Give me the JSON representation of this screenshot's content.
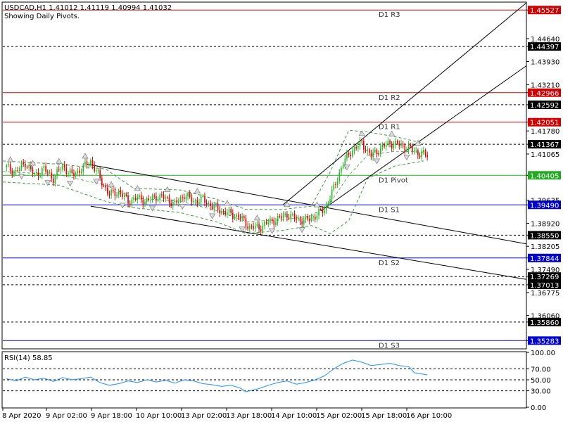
{
  "header": {
    "symbol_line": "USDCAD,H1  1.41012 1.41119 1.40994 1.41032",
    "subtitle": "Showing Daily Pivots."
  },
  "chart_data": [
    {
      "type": "candlestick",
      "symbol": "USDCAD",
      "timeframe": "H1",
      "ylim": [
        1.3505,
        1.4575
      ],
      "price_ticks": [
        1.45527,
        1.4464,
        1.44397,
        1.4393,
        1.4321,
        1.42966,
        1.42592,
        1.42051,
        1.4178,
        1.41367,
        1.41065,
        1.40405,
        1.39635,
        1.3949,
        1.3892,
        1.3855,
        1.38205,
        1.37844,
        1.3749,
        1.37269,
        1.37013,
        1.36775,
        1.3606,
        1.3586,
        1.35283
      ],
      "time_labels": [
        "8 Apr 2020",
        "9 Apr 02:00",
        "9 Apr 18:00",
        "10 Apr 10:00",
        "13 Apr 02:00",
        "13 Apr 18:00",
        "14 Apr 10:00",
        "15 Apr 02:00",
        "15 Apr 18:00",
        "16 Apr 10:00"
      ],
      "pivots": [
        {
          "label": "D1 R3",
          "value": 1.45527,
          "color": "#d00000"
        },
        {
          "label": "D1 R2",
          "value": 1.42966,
          "color": "#d00000"
        },
        {
          "label": "D1 R1",
          "value": 1.42051,
          "color": "#d00000"
        },
        {
          "label": "D1 Pivot",
          "value": 1.40405,
          "color": "#22aa22"
        },
        {
          "label": "D1 S1",
          "value": 1.3949,
          "color": "#0000cc"
        },
        {
          "label": "D1 S2",
          "value": 1.37844,
          "color": "#0000cc"
        },
        {
          "label": "D1 S3",
          "value": 1.35283,
          "color": "#0000cc"
        }
      ],
      "dashed_levels": [
        1.44397,
        1.42592,
        1.41367,
        1.3855,
        1.37269,
        1.37013,
        1.3586
      ],
      "close_path": [
        [
          0,
          1.4065
        ],
        [
          5,
          1.405
        ],
        [
          10,
          1.408
        ],
        [
          15,
          1.404
        ],
        [
          20,
          1.406
        ],
        [
          25,
          1.403
        ],
        [
          30,
          1.407
        ],
        [
          35,
          1.404
        ],
        [
          40,
          1.406
        ],
        [
          45,
          1.4085
        ],
        [
          50,
          1.403
        ],
        [
          55,
          1.398
        ],
        [
          60,
          1.399
        ],
        [
          65,
          1.396
        ],
        [
          70,
          1.397
        ],
        [
          75,
          1.396
        ],
        [
          80,
          1.3975
        ],
        [
          85,
          1.397
        ],
        [
          90,
          1.395
        ],
        [
          95,
          1.398
        ],
        [
          100,
          1.396
        ],
        [
          105,
          1.3965
        ],
        [
          110,
          1.3945
        ],
        [
          115,
          1.393
        ],
        [
          120,
          1.392
        ],
        [
          125,
          1.391
        ],
        [
          130,
          1.388
        ],
        [
          135,
          1.3878
        ],
        [
          140,
          1.3895
        ],
        [
          145,
          1.3905
        ],
        [
          150,
          1.392
        ],
        [
          155,
          1.3905
        ],
        [
          160,
          1.39
        ],
        [
          165,
          1.3915
        ],
        [
          170,
          1.3935
        ],
        [
          175,
          1.4
        ],
        [
          180,
          1.408
        ],
        [
          185,
          1.412
        ],
        [
          190,
          1.414
        ],
        [
          195,
          1.41
        ],
        [
          200,
          1.4125
        ],
        [
          205,
          1.414
        ],
        [
          210,
          1.4135
        ],
        [
          215,
          1.4125
        ],
        [
          220,
          1.411
        ],
        [
          225,
          1.4103
        ]
      ],
      "bb_upper": [
        [
          0,
          1.4085
        ],
        [
          30,
          1.4075
        ],
        [
          55,
          1.406
        ],
        [
          70,
          1.4
        ],
        [
          95,
          1.3995
        ],
        [
          115,
          1.3965
        ],
        [
          130,
          1.3935
        ],
        [
          150,
          1.3935
        ],
        [
          165,
          1.3945
        ],
        [
          175,
          1.405
        ],
        [
          185,
          1.418
        ],
        [
          195,
          1.4175
        ],
        [
          210,
          1.416
        ],
        [
          225,
          1.414
        ]
      ],
      "bb_lower": [
        [
          0,
          1.402
        ],
        [
          30,
          1.401
        ],
        [
          55,
          1.396
        ],
        [
          70,
          1.394
        ],
        [
          95,
          1.3925
        ],
        [
          115,
          1.3895
        ],
        [
          130,
          1.386
        ],
        [
          150,
          1.387
        ],
        [
          165,
          1.3885
        ],
        [
          175,
          1.386
        ],
        [
          185,
          1.39
        ],
        [
          195,
          1.403
        ],
        [
          210,
          1.407
        ],
        [
          225,
          1.4085
        ]
      ],
      "trendlines": [
        {
          "start": [
            45,
            1.4075
          ],
          "end": [
            280,
            1.3828
          ]
        },
        {
          "start": [
            47,
            1.3945
          ],
          "end": [
            280,
            1.3718
          ]
        },
        {
          "start": [
            150,
            1.395
          ],
          "end": [
            280,
            1.4575
          ]
        },
        {
          "start": [
            170,
            1.393
          ],
          "end": [
            280,
            1.438
          ]
        }
      ]
    },
    {
      "type": "line",
      "name": "RSI(14)",
      "title": "RSI(14) 58.85",
      "last_value": 58.85,
      "ylim": [
        0,
        100
      ],
      "ticks": [
        100.0,
        70.0,
        50.0,
        30.0,
        0.0
      ],
      "levels": [
        70,
        50,
        30
      ],
      "color": "#1e90ff",
      "values": [
        [
          0,
          52
        ],
        [
          5,
          48
        ],
        [
          10,
          55
        ],
        [
          15,
          50
        ],
        [
          20,
          53
        ],
        [
          25,
          47
        ],
        [
          30,
          54
        ],
        [
          35,
          50
        ],
        [
          40,
          52
        ],
        [
          45,
          55
        ],
        [
          50,
          45
        ],
        [
          55,
          40
        ],
        [
          60,
          43
        ],
        [
          65,
          48
        ],
        [
          70,
          45
        ],
        [
          75,
          50
        ],
        [
          80,
          46
        ],
        [
          85,
          49
        ],
        [
          90,
          44
        ],
        [
          95,
          50
        ],
        [
          100,
          48
        ],
        [
          105,
          43
        ],
        [
          110,
          41
        ],
        [
          115,
          38
        ],
        [
          120,
          40
        ],
        [
          125,
          35
        ],
        [
          128,
          28
        ],
        [
          130,
          30
        ],
        [
          135,
          34
        ],
        [
          140,
          40
        ],
        [
          145,
          45
        ],
        [
          150,
          48
        ],
        [
          155,
          42
        ],
        [
          160,
          45
        ],
        [
          165,
          50
        ],
        [
          170,
          57
        ],
        [
          175,
          70
        ],
        [
          180,
          80
        ],
        [
          185,
          86
        ],
        [
          190,
          82
        ],
        [
          195,
          76
        ],
        [
          200,
          78
        ],
        [
          205,
          80
        ],
        [
          210,
          76
        ],
        [
          215,
          74
        ],
        [
          218,
          63
        ],
        [
          225,
          59
        ]
      ]
    }
  ]
}
